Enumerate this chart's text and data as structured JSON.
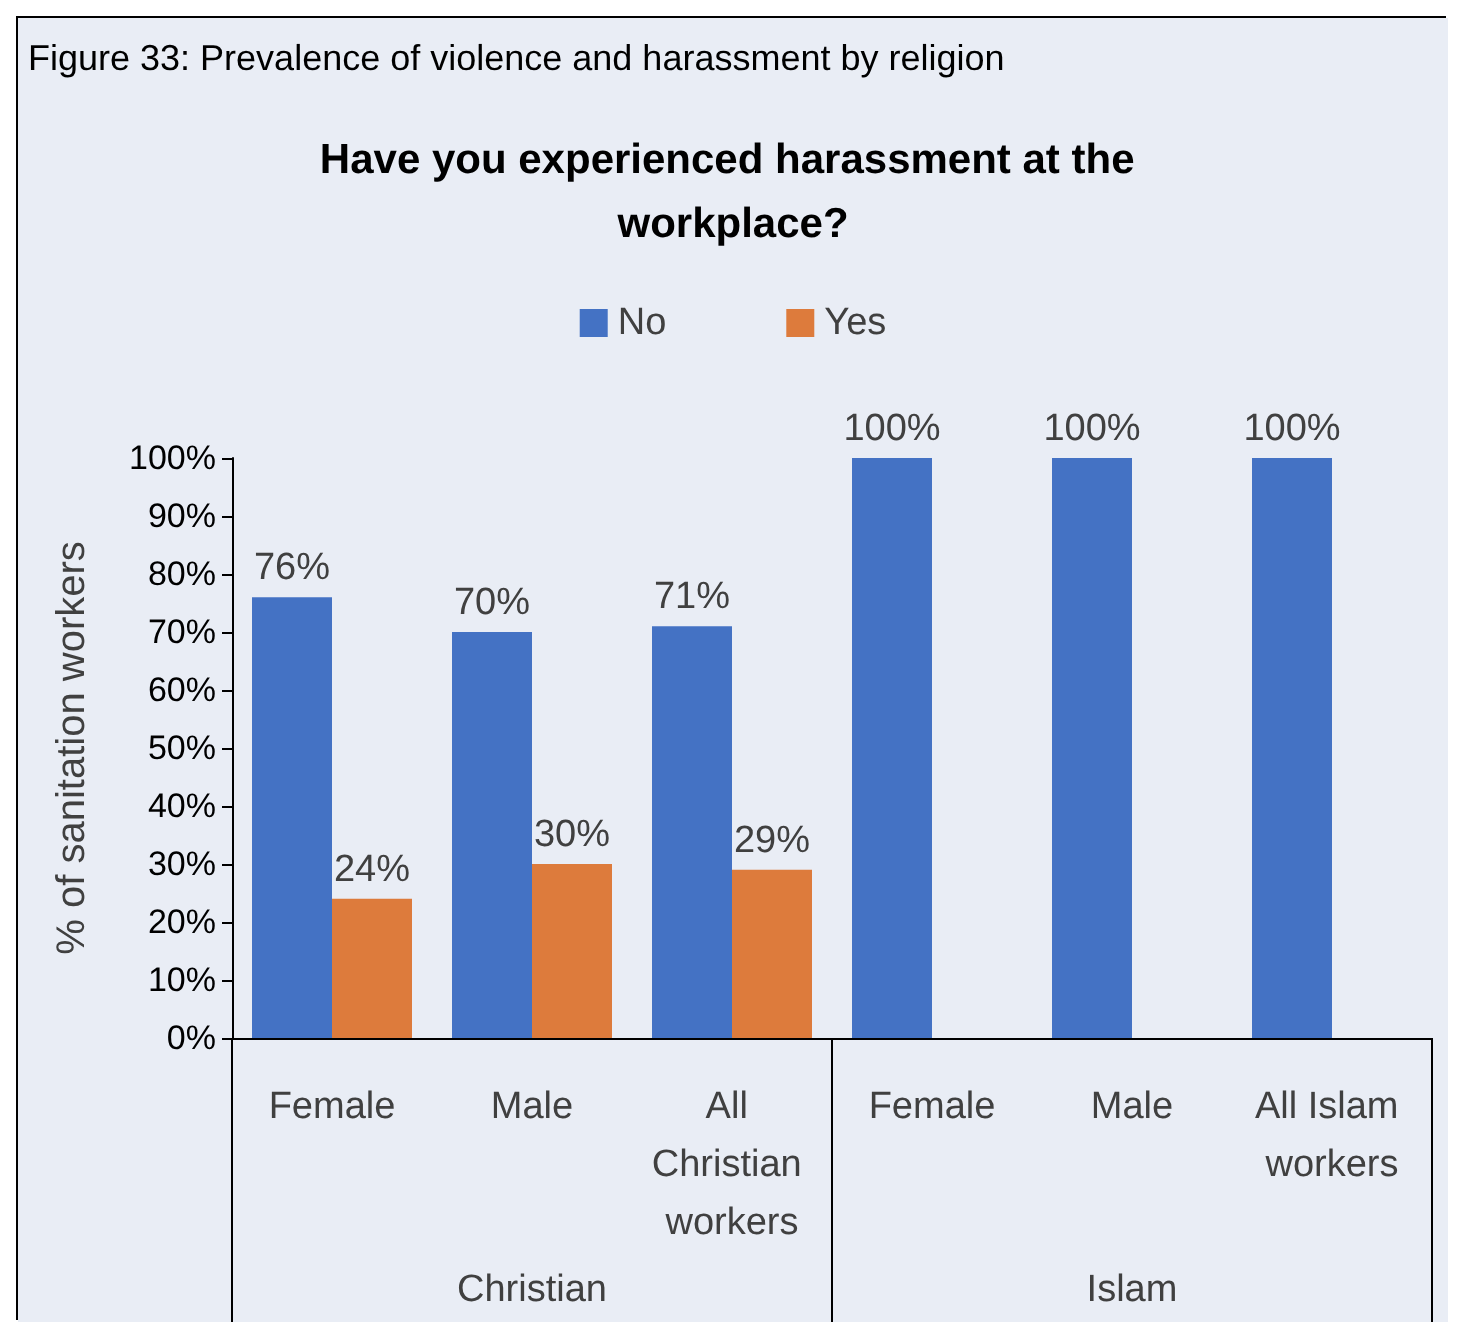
{
  "chart_data": {
    "type": "bar",
    "title": "Figure 33: Prevalence of violence and harassment by religion",
    "subtitle": "Have you experienced harassment at the workplace?",
    "categories": [
      "Female",
      "Male",
      "All Christian workers",
      "Female",
      "Male",
      "All Islam workers"
    ],
    "annotations": [
      "Christian",
      "Islam"
    ],
    "ylabel": "% of sanitation workers",
    "series": [
      {
        "name": "No",
        "color": "#4472c4",
        "values": [
          76,
          70,
          71,
          100,
          100,
          100
        ],
        "value_labels": [
          "76%",
          "70%",
          "71%",
          "100%",
          "100%",
          "100%"
        ]
      },
      {
        "name": "Yes",
        "color": "#dd7b3c",
        "values": [
          24,
          30,
          29,
          null,
          null,
          null
        ],
        "value_labels": [
          "24%",
          "30%",
          "29%",
          null,
          null,
          null
        ]
      }
    ],
    "ylim": [
      0,
      100
    ],
    "yticks": [
      {
        "value": 0,
        "label": "0%"
      },
      {
        "value": 10,
        "label": "10%"
      },
      {
        "value": 20,
        "label": "20%"
      },
      {
        "value": 30,
        "label": "30%"
      },
      {
        "value": 40,
        "label": "40%"
      },
      {
        "value": 50,
        "label": "50%"
      },
      {
        "value": 60,
        "label": "60%"
      },
      {
        "value": 70,
        "label": "70%"
      },
      {
        "value": 80,
        "label": "80%"
      },
      {
        "value": 90,
        "label": "90%"
      },
      {
        "value": 100,
        "label": "100%"
      }
    ],
    "legend": "top",
    "grid": false
  }
}
